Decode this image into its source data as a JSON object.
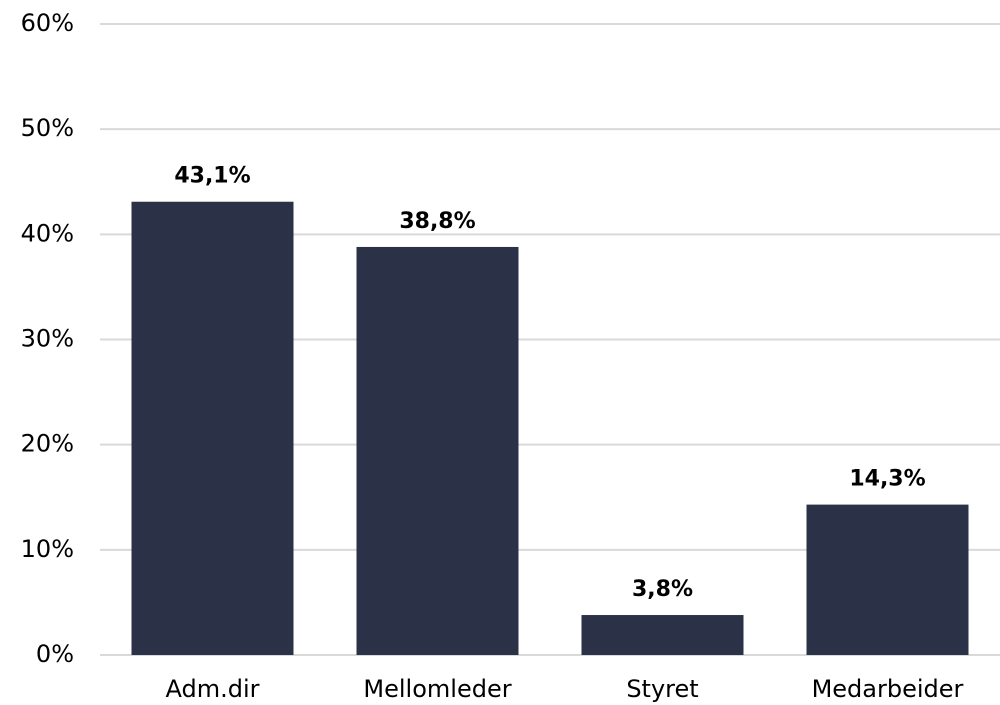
{
  "chart_data": {
    "type": "bar",
    "categories": [
      "Adm.dir",
      "Mellomleder",
      "Styret",
      "Medarbeider"
    ],
    "values": [
      43.1,
      38.8,
      3.8,
      14.3
    ],
    "value_labels": [
      "43,1%",
      "38,8%",
      "3,8%",
      "14,3%"
    ],
    "color": "#2b3147",
    "ylim": [
      0,
      60
    ],
    "yticks": [
      {
        "value": 0,
        "label": "0%"
      },
      {
        "value": 10,
        "label": "10%"
      },
      {
        "value": 20,
        "label": "20%"
      },
      {
        "value": 30,
        "label": "30%"
      },
      {
        "value": 40,
        "label": "40%"
      },
      {
        "value": 50,
        "label": "50%"
      },
      {
        "value": 60,
        "label": "60%"
      }
    ],
    "grid": true
  }
}
